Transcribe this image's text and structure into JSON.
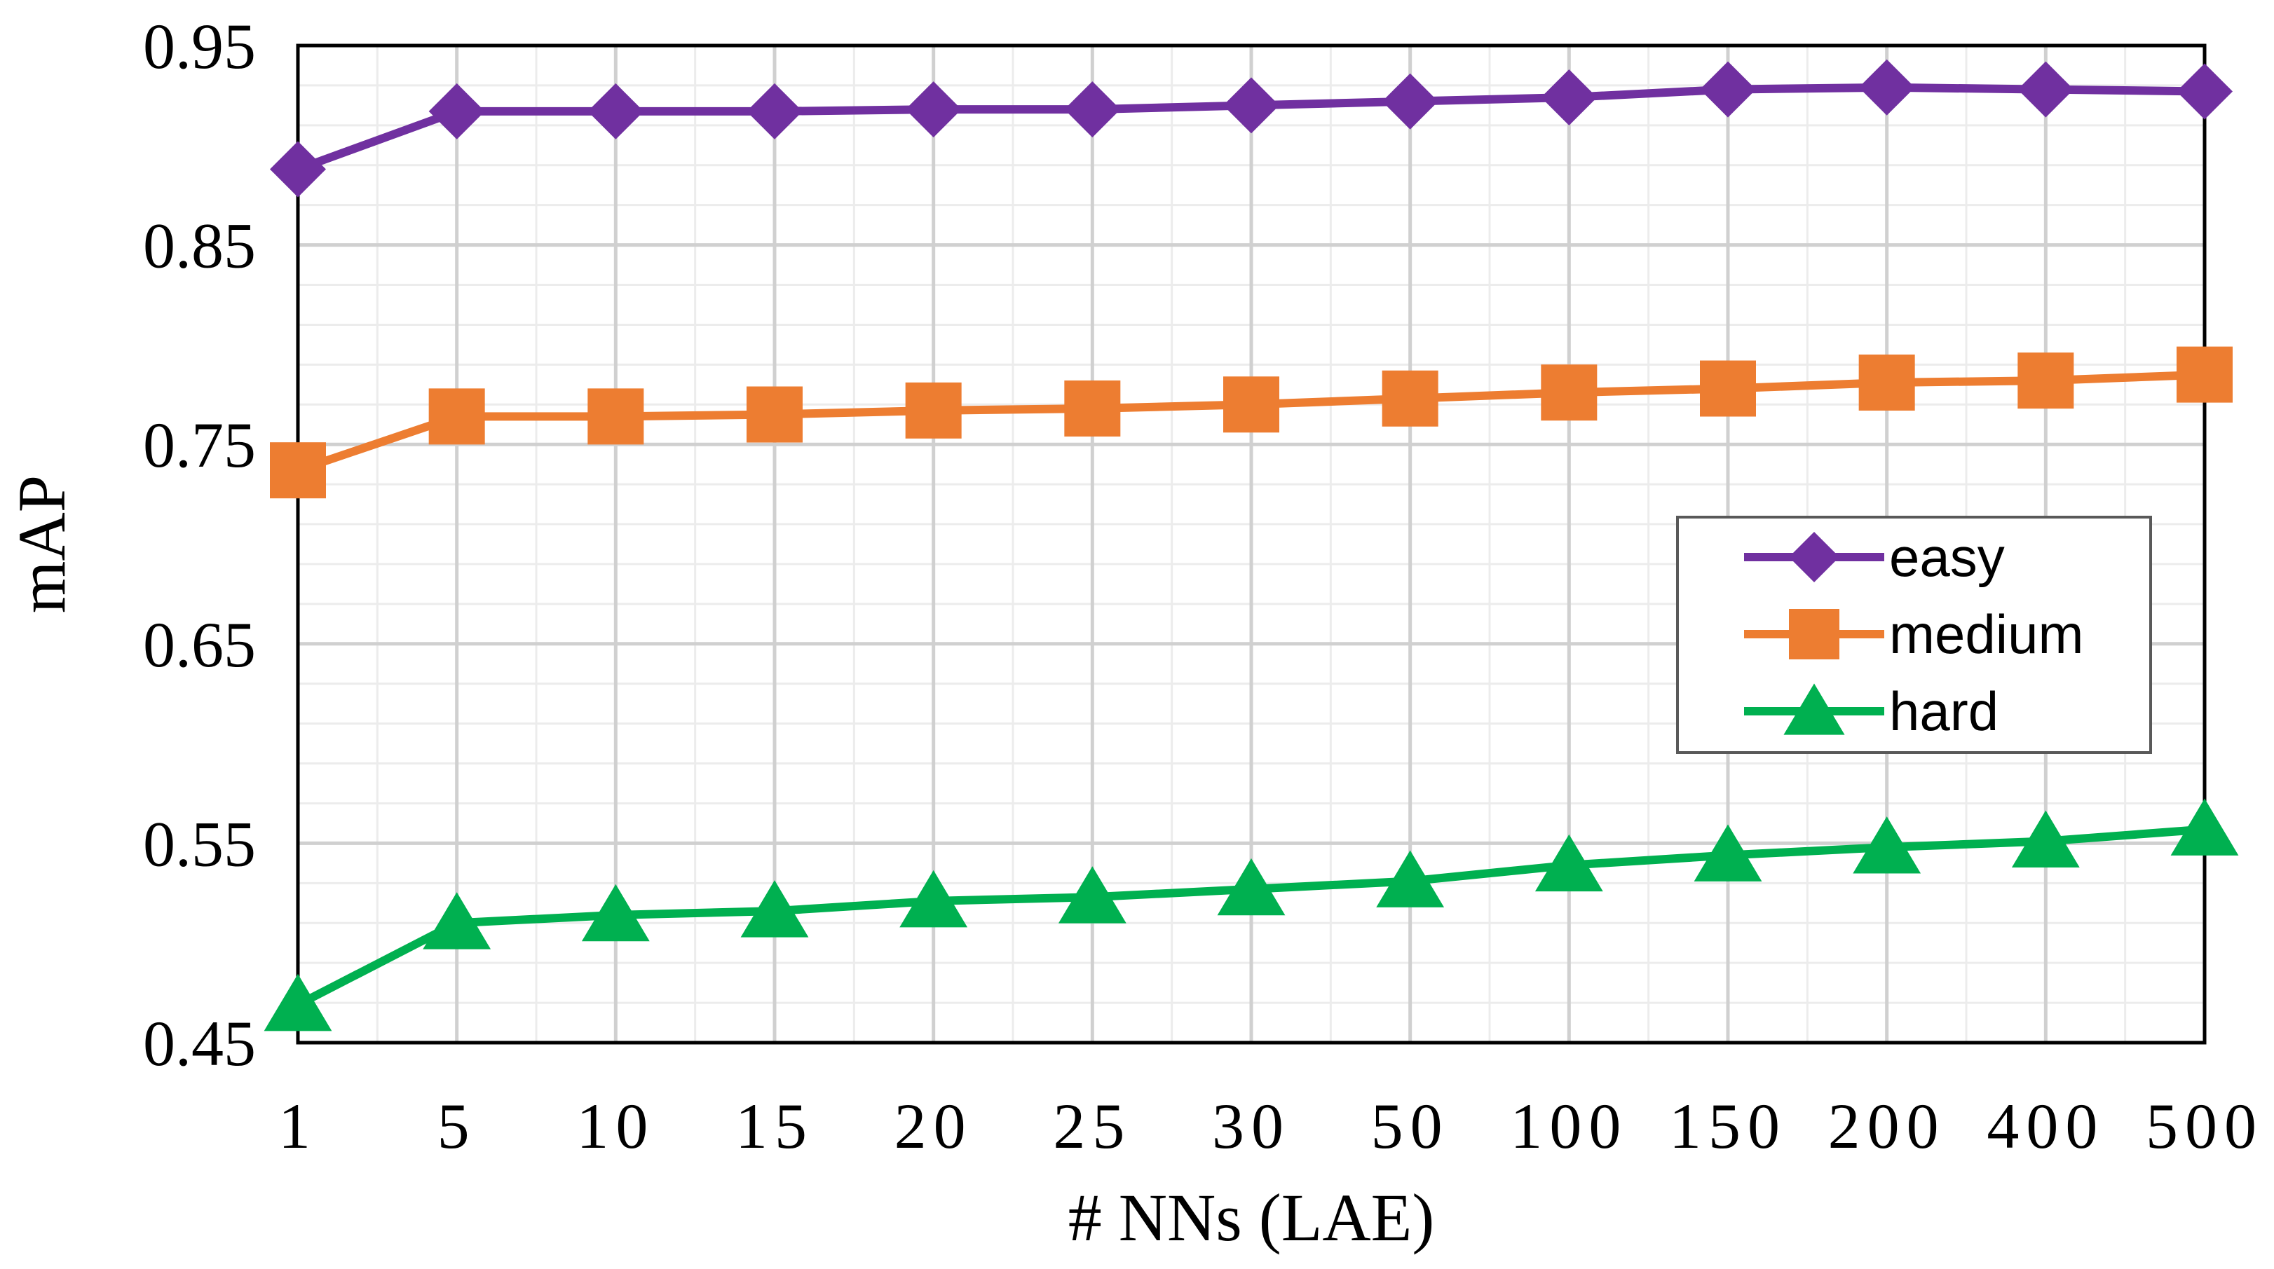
{
  "chart_data": {
    "type": "line",
    "title": "",
    "xlabel": "# NNs (LAE)",
    "ylabel": "mAP",
    "categories": [
      "1",
      "5",
      "10",
      "15",
      "20",
      "25",
      "30",
      "50",
      "100",
      "150",
      "200",
      "400",
      "500"
    ],
    "yticks": [
      "0.45",
      "0.55",
      "0.65",
      "0.75",
      "0.85",
      "0.95"
    ],
    "ylim": [
      0.45,
      0.95
    ],
    "grid": true,
    "legend_position": "right",
    "series": [
      {
        "name": "easy",
        "color": "#7030A0",
        "marker": "diamond",
        "values": [
          0.888,
          0.917,
          0.917,
          0.917,
          0.918,
          0.918,
          0.92,
          0.922,
          0.924,
          0.928,
          0.929,
          0.928,
          0.927
        ]
      },
      {
        "name": "medium",
        "color": "#ED7D31",
        "marker": "square",
        "values": [
          0.737,
          0.764,
          0.764,
          0.765,
          0.767,
          0.768,
          0.77,
          0.773,
          0.776,
          0.778,
          0.781,
          0.782,
          0.785
        ]
      },
      {
        "name": "hard",
        "color": "#00B050",
        "marker": "triangle",
        "values": [
          0.469,
          0.51,
          0.514,
          0.516,
          0.521,
          0.523,
          0.527,
          0.531,
          0.539,
          0.544,
          0.548,
          0.551,
          0.557
        ]
      }
    ]
  }
}
